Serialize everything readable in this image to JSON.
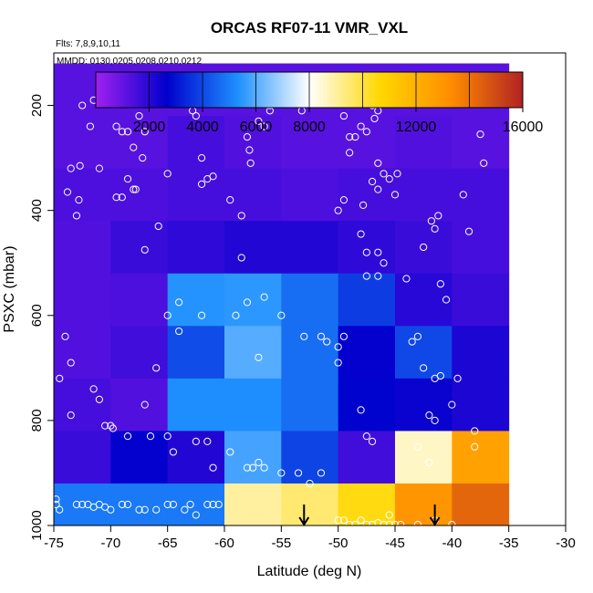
{
  "chart_data": {
    "type": "heatmap",
    "title": "ORCAS RF07-11 VMR_VXL",
    "notes": {
      "flights": "Flts: 7,8,9,10,11",
      "dates": "MMDD: 0130,0205,0208,0210,0212"
    },
    "xlabel": "Latitude (deg N)",
    "ylabel": "PSXC (mbar)",
    "xlim": [
      -75,
      -30
    ],
    "ylim": [
      1000,
      100
    ],
    "x_ticks": [
      -75,
      -70,
      -65,
      -60,
      -55,
      -50,
      -45,
      -40,
      -35,
      -30
    ],
    "y_ticks": [
      200,
      400,
      600,
      800,
      1000
    ],
    "colorbar": {
      "range": [
        0,
        16000
      ],
      "ticks": [
        2000,
        4000,
        6000,
        8000,
        12000,
        16000
      ],
      "colors": [
        "#a020f0",
        "#0000cd",
        "#1e90ff",
        "#ffffff",
        "#ffd700",
        "#ff8c00",
        "#b22222"
      ]
    },
    "cells": {
      "lat_edges": [
        -75,
        -70,
        -65,
        -60,
        -55,
        -50,
        -45,
        -40,
        -35
      ],
      "p_edges": [
        120,
        220,
        320,
        420,
        520,
        620,
        720,
        820,
        920,
        1020
      ],
      "values": [
        [
          1200,
          1200,
          1200,
          1200,
          1200,
          1200,
          1200,
          1200
        ],
        [
          1200,
          1200,
          1500,
          1300,
          1200,
          1200,
          1300,
          1200
        ],
        [
          1400,
          1400,
          1500,
          1500,
          1400,
          1500,
          1500,
          1500
        ],
        [
          1300,
          1700,
          1900,
          2100,
          2100,
          1900,
          1700,
          1500
        ],
        [
          1300,
          1400,
          5400,
          5500,
          4700,
          3800,
          2000,
          1700
        ],
        [
          1300,
          1600,
          4100,
          6000,
          4700,
          2600,
          4000,
          2200
        ],
        [
          1500,
          1300,
          5300,
          5300,
          4700,
          2700,
          2500,
          2200
        ],
        [
          1700,
          2600,
          2100,
          5800,
          3900,
          1600,
          8600,
          12600
        ],
        [
          4900,
          4900,
          4900,
          9000,
          9500,
          10500,
          13000,
          14300
        ]
      ]
    },
    "arrows": [
      {
        "latitude": -53,
        "pressure": 1000
      },
      {
        "latitude": -41.5,
        "pressure": 1000
      }
    ],
    "observations": [
      [
        -72.5,
        200
      ],
      [
        -71.5,
        190
      ],
      [
        -70,
        190
      ],
      [
        -69.5,
        240
      ],
      [
        -69,
        250
      ],
      [
        -68.5,
        250
      ],
      [
        -68,
        280
      ],
      [
        -67.5,
        220
      ],
      [
        -67,
        250
      ],
      [
        -71.8,
        240
      ],
      [
        -73.5,
        320
      ],
      [
        -72.7,
        315
      ],
      [
        -71,
        320
      ],
      [
        -68.5,
        340
      ],
      [
        -68,
        360
      ],
      [
        -69,
        375
      ],
      [
        -69.5,
        375
      ],
      [
        -67.2,
        300
      ],
      [
        -67.8,
        360
      ],
      [
        -65,
        330
      ],
      [
        -73.8,
        365
      ],
      [
        -72.8,
        380
      ],
      [
        -73,
        410
      ],
      [
        -65.8,
        430
      ],
      [
        -67,
        475
      ],
      [
        -64.5,
        185
      ],
      [
        -62.8,
        210
      ],
      [
        -62.5,
        220
      ],
      [
        -62,
        300
      ],
      [
        -61.5,
        340
      ],
      [
        -61,
        335
      ],
      [
        -58,
        190
      ],
      [
        -58,
        260
      ],
      [
        -57.5,
        195
      ],
      [
        -57.8,
        285
      ],
      [
        -57,
        230
      ],
      [
        -57.7,
        310
      ],
      [
        -56.5,
        240
      ],
      [
        -56,
        200
      ],
      [
        -56,
        210
      ],
      [
        -55.8,
        190
      ],
      [
        -55,
        190
      ],
      [
        -53.2,
        210
      ],
      [
        -50.5,
        190
      ],
      [
        -49.8,
        195
      ],
      [
        -49.5,
        220
      ],
      [
        -49,
        290
      ],
      [
        -48.5,
        260
      ],
      [
        -48,
        240
      ],
      [
        -49,
        260
      ],
      [
        -47,
        200
      ],
      [
        -46.5,
        210
      ],
      [
        -46.8,
        225
      ],
      [
        -47.5,
        250
      ],
      [
        -46.5,
        310
      ],
      [
        -46,
        330
      ],
      [
        -47,
        345
      ],
      [
        -46.5,
        360
      ],
      [
        -45,
        370
      ],
      [
        -45.5,
        340
      ],
      [
        -47.8,
        390
      ],
      [
        -49.5,
        380
      ],
      [
        -50,
        400
      ],
      [
        -48,
        445
      ],
      [
        -47.5,
        480
      ],
      [
        -46.5,
        480
      ],
      [
        -46,
        500
      ],
      [
        -47.5,
        525
      ],
      [
        -46.5,
        525
      ],
      [
        -44.8,
        330
      ],
      [
        -41.8,
        420
      ],
      [
        -41.2,
        410
      ],
      [
        -41.5,
        435
      ],
      [
        -41,
        540
      ],
      [
        -44,
        530
      ],
      [
        -42.5,
        470
      ],
      [
        -40.5,
        570
      ],
      [
        -39,
        370
      ],
      [
        -38.5,
        440
      ],
      [
        -36.5,
        185
      ],
      [
        -36,
        190
      ],
      [
        -35.5,
        190
      ],
      [
        -35.3,
        195
      ],
      [
        -35.2,
        185
      ],
      [
        -35,
        190
      ],
      [
        -34.8,
        195
      ],
      [
        -34.6,
        190
      ],
      [
        -34.5,
        185
      ],
      [
        -37.5,
        255
      ],
      [
        -37.2,
        310
      ],
      [
        -62,
        350
      ],
      [
        -58.5,
        410
      ],
      [
        -58.5,
        490
      ],
      [
        -59.5,
        380
      ],
      [
        -59,
        600
      ],
      [
        -62,
        600
      ],
      [
        -64,
        575
      ],
      [
        -65,
        600
      ],
      [
        -64,
        630
      ],
      [
        -58,
        575
      ],
      [
        -56.5,
        565
      ],
      [
        -57,
        680
      ],
      [
        -55,
        600
      ],
      [
        -53,
        640
      ],
      [
        -51.5,
        640
      ],
      [
        -51,
        650
      ],
      [
        -50,
        660
      ],
      [
        -49.5,
        640
      ],
      [
        -50,
        690
      ],
      [
        -48,
        780
      ],
      [
        -47.5,
        830
      ],
      [
        -47,
        840
      ],
      [
        -43.5,
        650
      ],
      [
        -43,
        640
      ],
      [
        -42.5,
        700
      ],
      [
        -41.5,
        720
      ],
      [
        -41,
        715
      ],
      [
        -42,
        790
      ],
      [
        -38,
        820
      ],
      [
        -38,
        850
      ],
      [
        -39.5,
        720
      ],
      [
        -40,
        770
      ],
      [
        -41.5,
        800
      ],
      [
        -43,
        850
      ],
      [
        -42,
        880
      ],
      [
        -74,
        640
      ],
      [
        -73.5,
        690
      ],
      [
        -74.5,
        720
      ],
      [
        -73.5,
        790
      ],
      [
        -71.5,
        740
      ],
      [
        -71,
        760
      ],
      [
        -70.5,
        810
      ],
      [
        -70,
        810
      ],
      [
        -69.8,
        815
      ],
      [
        -68.5,
        830
      ],
      [
        -67,
        770
      ],
      [
        -66.5,
        830
      ],
      [
        -66,
        700
      ],
      [
        -65,
        830
      ],
      [
        -64.5,
        860
      ],
      [
        -62.5,
        840
      ],
      [
        -61.5,
        840
      ],
      [
        -61,
        890
      ],
      [
        -59.5,
        860
      ],
      [
        -58,
        890
      ],
      [
        -57.5,
        890
      ],
      [
        -57,
        880
      ],
      [
        -56.5,
        890
      ],
      [
        -55,
        900
      ],
      [
        -53.5,
        900
      ],
      [
        -52.5,
        920
      ],
      [
        -51.5,
        900
      ],
      [
        -50,
        990
      ],
      [
        -49.5,
        990
      ],
      [
        -49,
        1000
      ],
      [
        -48.5,
        1000
      ],
      [
        -48,
        990
      ],
      [
        -47.5,
        1000
      ],
      [
        -47,
        1000
      ],
      [
        -46.5,
        995
      ],
      [
        -45.5,
        980
      ],
      [
        -45,
        1000
      ],
      [
        -44.5,
        1000
      ],
      [
        -43,
        1000
      ],
      [
        -40,
        1000
      ],
      [
        -41.5,
        990
      ],
      [
        -74.5,
        970
      ],
      [
        -73,
        960
      ],
      [
        -72.5,
        960
      ],
      [
        -72,
        960
      ],
      [
        -71.5,
        965
      ],
      [
        -71,
        960
      ],
      [
        -70.5,
        965
      ],
      [
        -70,
        970
      ],
      [
        -69,
        960
      ],
      [
        -68.5,
        960
      ],
      [
        -67.5,
        970
      ],
      [
        -67,
        970
      ],
      [
        -66,
        970
      ],
      [
        -65,
        960
      ],
      [
        -64.5,
        960
      ],
      [
        -63.5,
        970
      ],
      [
        -63,
        960
      ],
      [
        -62.5,
        980
      ],
      [
        -61.5,
        960
      ],
      [
        -61,
        960
      ],
      [
        -60.5,
        960
      ],
      [
        -74.8,
        950
      ],
      [
        -74.8,
        960
      ],
      [
        -46,
        1020
      ],
      [
        -45.5,
        1020
      ]
    ]
  }
}
